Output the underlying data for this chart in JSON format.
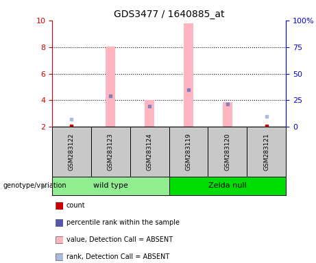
{
  "title": "GDS3477 / 1640885_at",
  "samples": [
    "GSM283122",
    "GSM283123",
    "GSM283124",
    "GSM283119",
    "GSM283120",
    "GSM283121"
  ],
  "group_positions": [
    {
      "start": 0,
      "end": 2,
      "name": "wild type",
      "color": "#90EE90"
    },
    {
      "start": 3,
      "end": 5,
      "name": "Zelda null",
      "color": "#00DD00"
    }
  ],
  "ylim_left": [
    2,
    10
  ],
  "yticks_left": [
    2,
    4,
    6,
    8,
    10
  ],
  "yticks_right_values": [
    2.0,
    4.0,
    6.0,
    8.0,
    10.0
  ],
  "ytick_labels_right": [
    "0",
    "25",
    "50",
    "75",
    "100%"
  ],
  "bar_color_absent": "#FFB6C1",
  "dot_color_count": "#CC0000",
  "dot_color_rank": "#7777BB",
  "dot_color_rank_absent": "#AABBDD",
  "bar_tops": [
    null,
    8.05,
    4.0,
    9.8,
    3.85,
    null
  ],
  "count_y": [
    2.05,
    null,
    null,
    null,
    null,
    2.05
  ],
  "rank_y": [
    null,
    4.3,
    3.55,
    4.8,
    3.7,
    null
  ],
  "rank_absent_y": [
    2.55,
    null,
    null,
    null,
    null,
    2.75
  ],
  "grid_dotted_at": [
    4,
    6,
    8
  ],
  "gray_box_color": "#C8C8C8",
  "axis_color_left": "#CC0000",
  "axis_color_right": "#0000CC",
  "legend": [
    {
      "label": "count",
      "color": "#CC0000"
    },
    {
      "label": "percentile rank within the sample",
      "color": "#5555AA"
    },
    {
      "label": "value, Detection Call = ABSENT",
      "color": "#FFB6C1"
    },
    {
      "label": "rank, Detection Call = ABSENT",
      "color": "#AABBDD"
    }
  ],
  "group_label": "genotype/variation",
  "background_color": "#FFFFFF"
}
